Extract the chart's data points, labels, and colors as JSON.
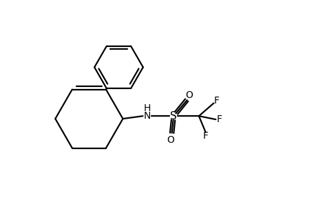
{
  "background_color": "#ffffff",
  "line_color": "#000000",
  "line_width": 1.6,
  "font_size": 10,
  "fig_width": 4.6,
  "fig_height": 3.0,
  "dpi": 100,
  "xlim": [
    0,
    9.2
  ],
  "ylim": [
    0,
    6.0
  ]
}
